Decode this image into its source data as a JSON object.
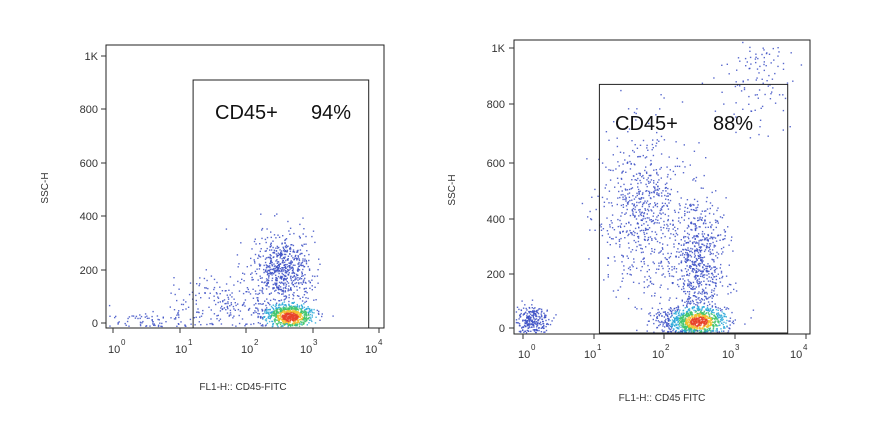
{
  "chart_data": [
    {
      "type": "scatter",
      "xlabel": "FL1-H:: CD45-FITC",
      "ylabel": "SSC-H",
      "x_scale": "log",
      "xlim": [
        1,
        10000
      ],
      "ylim": [
        0,
        1023
      ],
      "x_ticks": [
        {
          "base": "10",
          "exp": "0",
          "value": 1
        },
        {
          "base": "10",
          "exp": "1",
          "value": 10
        },
        {
          "base": "10",
          "exp": "2",
          "value": 100
        },
        {
          "base": "10",
          "exp": "3",
          "value": 1000
        },
        {
          "base": "10",
          "exp": "4",
          "value": 10000
        }
      ],
      "y_ticks": [
        {
          "label": "0",
          "value": 0
        },
        {
          "label": "200",
          "value": 200
        },
        {
          "label": "400",
          "value": 400
        },
        {
          "label": "600",
          "value": 600
        },
        {
          "label": "800",
          "value": 800
        },
        {
          "label": "1K",
          "value": 1000
        }
      ],
      "gate": {
        "name": "CD45+",
        "percent": "94%",
        "x_range": [
          16,
          7000
        ],
        "y_range": [
          0,
          910
        ]
      },
      "populations": [
        {
          "center": [
            3.2,
            14
          ],
          "spread": [
            0.35,
            18
          ],
          "count": 70
        },
        {
          "center": [
            60,
            70
          ],
          "spread": [
            0.45,
            60
          ],
          "count": 220
        },
        {
          "center": [
            350,
            200
          ],
          "spread": [
            0.22,
            70
          ],
          "count": 650
        },
        {
          "center": [
            450,
            30
          ],
          "spread": [
            0.18,
            20
          ],
          "count": 750
        }
      ],
      "density_peak": [
        450,
        25
      ],
      "grid": false
    },
    {
      "type": "scatter",
      "xlabel": "FL1-H:: CD45 FITC",
      "ylabel": "SSC-H",
      "x_scale": "log",
      "xlim": [
        1,
        10000
      ],
      "ylim": [
        0,
        1023
      ],
      "x_ticks": [
        {
          "base": "10",
          "exp": "0",
          "value": 1
        },
        {
          "base": "10",
          "exp": "1",
          "value": 10
        },
        {
          "base": "10",
          "exp": "2",
          "value": 100
        },
        {
          "base": "10",
          "exp": "3",
          "value": 1000
        },
        {
          "base": "10",
          "exp": "4",
          "value": 10000
        }
      ],
      "y_ticks": [
        {
          "label": "0",
          "value": 0
        },
        {
          "label": "200",
          "value": 200
        },
        {
          "label": "400",
          "value": 400
        },
        {
          "label": "600",
          "value": 600
        },
        {
          "label": "800",
          "value": 800
        },
        {
          "label": "1K",
          "value": 1000
        }
      ],
      "gate": {
        "name": "CD45+",
        "percent": "88%",
        "x_range": [
          12,
          5500
        ],
        "y_range": [
          0,
          870
        ]
      },
      "populations": [
        {
          "center": [
            1.3,
            30
          ],
          "spread": [
            0.12,
            25
          ],
          "count": 260
        },
        {
          "center": [
            50,
            420
          ],
          "spread": [
            0.3,
            150
          ],
          "count": 650
        },
        {
          "center": [
            300,
            220
          ],
          "spread": [
            0.2,
            110
          ],
          "count": 700
        },
        {
          "center": [
            250,
            30
          ],
          "spread": [
            0.25,
            25
          ],
          "count": 900
        },
        {
          "center": [
            2000,
            900
          ],
          "spread": [
            0.25,
            100
          ],
          "count": 120
        }
      ],
      "density_peak": [
        300,
        25
      ],
      "grid": false
    }
  ]
}
